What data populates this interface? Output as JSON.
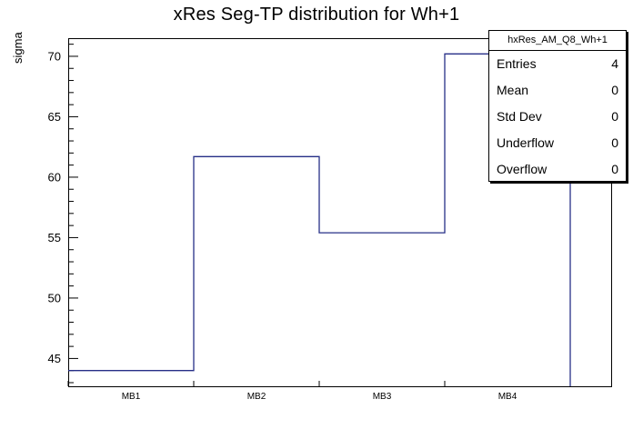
{
  "title": "xRes Seg-TP distribution for Wh+1",
  "y_axis_label": "sigma",
  "stats_box": {
    "header": "hxRes_AM_Q8_Wh+1",
    "rows": [
      {
        "label": "Entries",
        "value": "4"
      },
      {
        "label": "Mean",
        "value": "0"
      },
      {
        "label": "Std Dev",
        "value": "0"
      },
      {
        "label": "Underflow",
        "value": "0"
      },
      {
        "label": "Overflow",
        "value": "0"
      }
    ]
  },
  "chart_data": {
    "type": "bar",
    "style": "step-histogram",
    "title": "xRes Seg-TP distribution for Wh+1",
    "xlabel": "",
    "ylabel": "sigma",
    "categories": [
      "MB1",
      "MB2",
      "MB3",
      "MB4"
    ],
    "values": [
      44.0,
      61.7,
      55.4,
      70.2
    ],
    "ylim": [
      42.7,
      71.5
    ],
    "yticks": [
      45,
      50,
      55,
      60,
      65,
      70
    ],
    "minor_tick_step": 1,
    "major_tick_step": 5,
    "grid": false,
    "legend": "none",
    "line_color": "#262f87",
    "axis_color": "#000000",
    "background_color": "#ffffff"
  }
}
